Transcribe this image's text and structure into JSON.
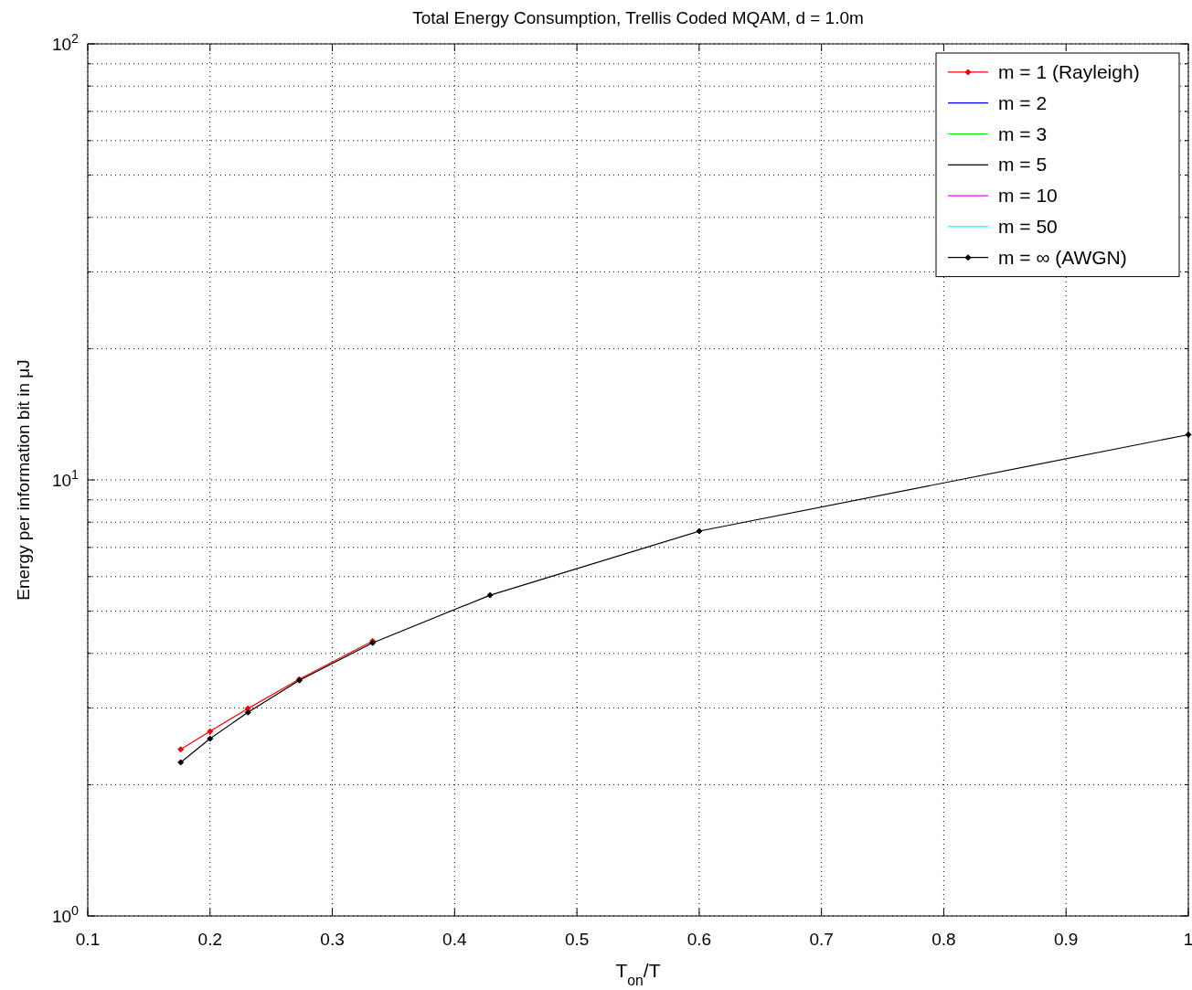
{
  "chart_data": {
    "type": "line",
    "title": "Total Energy Consumption, Trellis Coded MQAM, d = 1.0m",
    "xlabel": "T$_{on}$/T",
    "ylabel": "Energy per information bit in μJ",
    "log": "y",
    "grid": true,
    "legend": "top right",
    "line_style": "solid",
    "x": [
      0.176,
      0.2,
      0.231,
      0.273,
      0.333,
      0.429,
      0.6,
      1
    ],
    "xlim": [
      0.1,
      1
    ],
    "xticks": [
      0.1,
      0.2,
      0.3,
      0.4,
      0.5,
      0.6,
      0.7,
      0.8,
      0.9,
      1
    ],
    "ylim": [
      1,
      100
    ],
    "yticks": [
      {
        "value": 1,
        "label": "10$^{0}$"
      },
      {
        "value": 2,
        "label": null
      },
      {
        "value": 3,
        "label": null
      },
      {
        "value": 4,
        "label": null
      },
      {
        "value": 5,
        "label": null
      },
      {
        "value": 6,
        "label": null
      },
      {
        "value": 7,
        "label": null
      },
      {
        "value": 8,
        "label": null
      },
      {
        "value": 9,
        "label": null
      },
      {
        "value": 10,
        "label": "10$^{1}$"
      },
      {
        "value": 20,
        "label": null
      },
      {
        "value": 30,
        "label": null
      },
      {
        "value": 40,
        "label": null
      },
      {
        "value": 50,
        "label": null
      },
      {
        "value": 60,
        "label": null
      },
      {
        "value": 70,
        "label": null
      },
      {
        "value": 80,
        "label": null
      },
      {
        "value": 90,
        "label": null
      },
      {
        "value": 100,
        "label": "10$^{2}$"
      }
    ],
    "series": [
      {
        "name": "m = 1 (Rayleigh)",
        "color": "#ff0000",
        "marker": "diamond",
        "values": [
          2.41,
          2.65,
          2.99,
          3.49,
          4.27,
          null,
          null,
          null
        ]
      },
      {
        "name": "m = 2",
        "color": "#0000ff",
        "marker": "none",
        "values": [
          null,
          null,
          null,
          null,
          null,
          null,
          null,
          null
        ]
      },
      {
        "name": "m = 3",
        "color": "#00ff00",
        "marker": "none",
        "values": [
          null,
          null,
          null,
          null,
          null,
          null,
          null,
          null
        ]
      },
      {
        "name": "m = 5",
        "color": "#000000",
        "marker": "none",
        "values": [
          null,
          null,
          null,
          null,
          null,
          null,
          null,
          null
        ]
      },
      {
        "name": "m = 10",
        "color": "#ff00ff",
        "marker": "none",
        "values": [
          null,
          null,
          null,
          null,
          null,
          null,
          null,
          null
        ]
      },
      {
        "name": "m = 50",
        "color": "#00ffff",
        "marker": "none",
        "values": [
          null,
          null,
          null,
          null,
          null,
          null,
          null,
          null
        ]
      },
      {
        "name": "m = ∞ (AWGN)",
        "color": "#000000",
        "marker": "diamond",
        "values": [
          2.25,
          2.55,
          2.93,
          3.47,
          4.23,
          5.44,
          7.63,
          12.7
        ]
      }
    ]
  }
}
